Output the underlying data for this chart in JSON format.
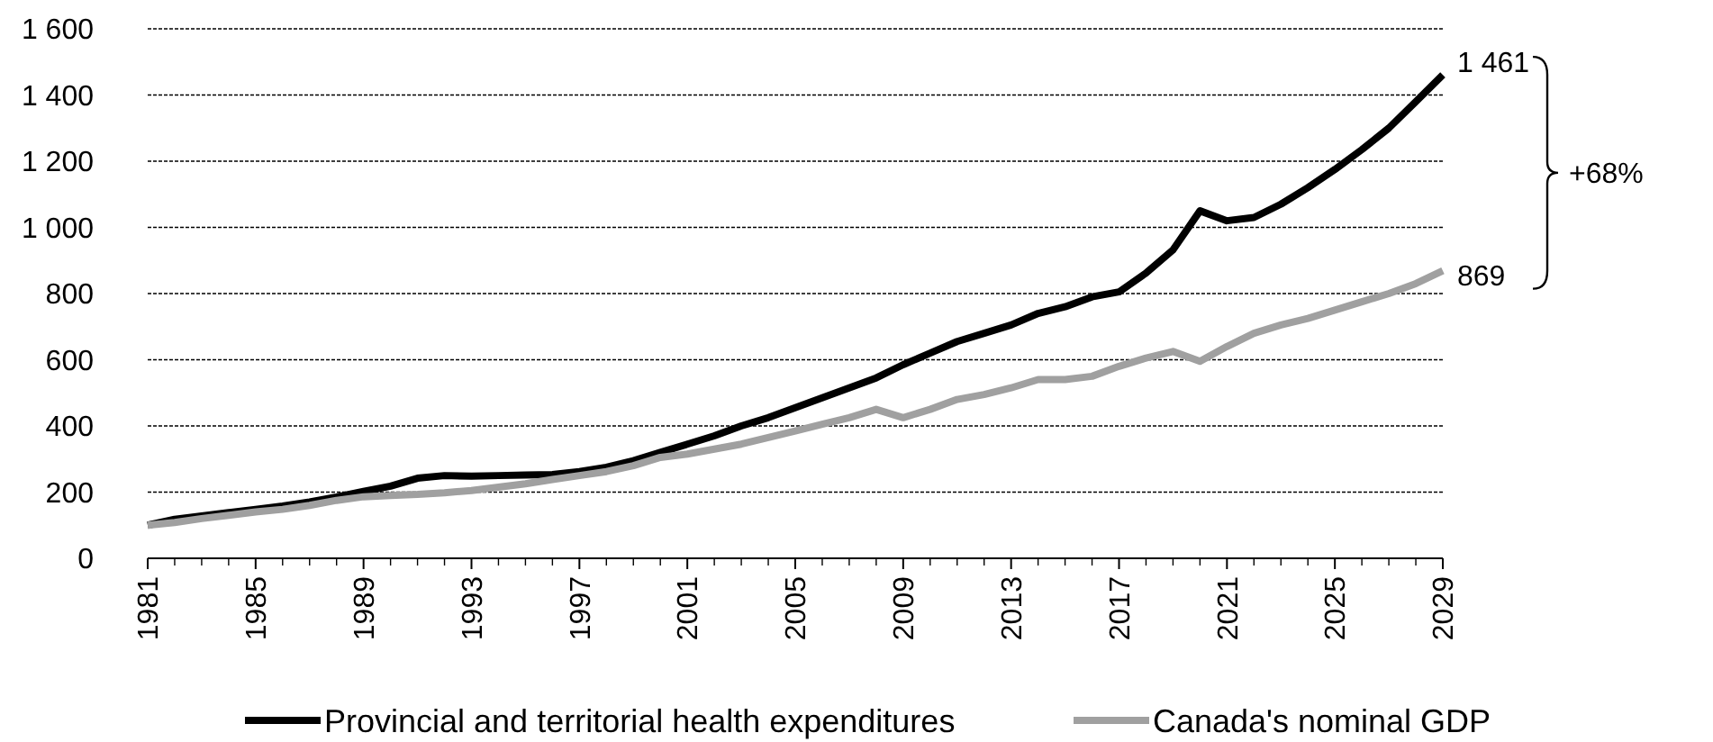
{
  "chart_data": {
    "type": "line",
    "x": [
      1981,
      1982,
      1983,
      1984,
      1985,
      1986,
      1987,
      1988,
      1989,
      1990,
      1991,
      1992,
      1993,
      1994,
      1995,
      1996,
      1997,
      1998,
      1999,
      2000,
      2001,
      2002,
      2003,
      2004,
      2005,
      2006,
      2007,
      2008,
      2009,
      2010,
      2011,
      2012,
      2013,
      2014,
      2015,
      2016,
      2017,
      2018,
      2019,
      2020,
      2021,
      2022,
      2023,
      2024,
      2025,
      2026,
      2027,
      2028,
      2029
    ],
    "series": [
      {
        "name": "Provincial and territorial health expenditures",
        "color": "#000000",
        "values": [
          100,
          118,
          128,
          138,
          148,
          158,
          170,
          185,
          202,
          218,
          242,
          250,
          248,
          250,
          252,
          253,
          262,
          275,
          295,
          320,
          345,
          370,
          400,
          425,
          455,
          485,
          515,
          545,
          585,
          620,
          655,
          680,
          705,
          740,
          760,
          790,
          805,
          862,
          932,
          1050,
          1020,
          1030,
          1070,
          1120,
          1175,
          1235,
          1300,
          1380,
          1461
        ]
      },
      {
        "name": "Canada's nominal GDP",
        "color": "#a0a0a0",
        "values": [
          100,
          108,
          120,
          130,
          140,
          148,
          160,
          175,
          186,
          190,
          193,
          198,
          205,
          215,
          225,
          238,
          250,
          262,
          280,
          305,
          315,
          330,
          345,
          365,
          385,
          405,
          425,
          450,
          425,
          450,
          480,
          495,
          515,
          540,
          540,
          550,
          580,
          605,
          625,
          595,
          640,
          680,
          705,
          725,
          750,
          775,
          800,
          830,
          869
        ]
      }
    ],
    "xlim": [
      1981,
      2029
    ],
    "xticks": [
      1981,
      1985,
      1989,
      1993,
      1997,
      2001,
      2005,
      2009,
      2013,
      2017,
      2021,
      2025,
      2029
    ],
    "ylim": [
      0,
      1600
    ],
    "yticks": [
      0,
      {
        "value": 200,
        "label": "200"
      },
      {
        "value": 400,
        "label": "400"
      },
      {
        "value": 600,
        "label": "600"
      },
      {
        "value": 800,
        "label": "800"
      },
      {
        "value": 1000,
        "label": "1 000"
      },
      {
        "value": 1200,
        "label": "1 200"
      },
      {
        "value": 1400,
        "label": "1 400"
      },
      {
        "value": 1600,
        "label": "1 600"
      }
    ],
    "grid": "y",
    "legend": "bottom",
    "marker": "none",
    "line_style": "solid",
    "annotations": [
      {
        "text": "1 461",
        "x": 2029,
        "y": 1461
      },
      {
        "text": "869",
        "x": 2029,
        "y": 869
      },
      "+68%"
    ]
  }
}
